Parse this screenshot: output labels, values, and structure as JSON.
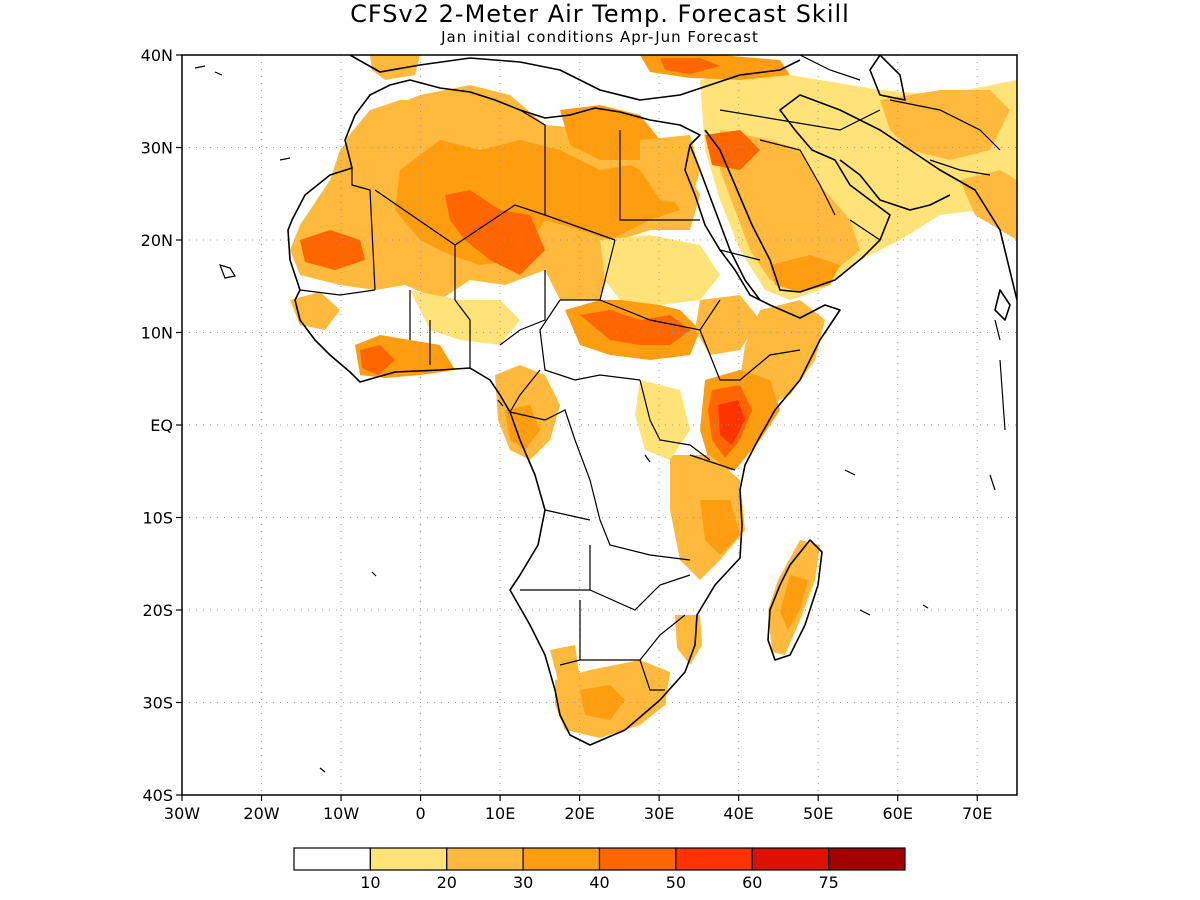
{
  "title": "CFSv2 2-Meter Air Temp. Forecast Skill",
  "subtitle": "Jan initial conditions  Apr-Jun Forecast",
  "map": {
    "lon_range": [
      -30,
      75
    ],
    "lat_range": [
      -40,
      40
    ],
    "lat_ticks": [
      {
        "lat": 40,
        "label": "40N"
      },
      {
        "lat": 30,
        "label": "30N"
      },
      {
        "lat": 20,
        "label": "20N"
      },
      {
        "lat": 10,
        "label": "10N"
      },
      {
        "lat": 0,
        "label": "EQ"
      },
      {
        "lat": -10,
        "label": "10S"
      },
      {
        "lat": -20,
        "label": "20S"
      },
      {
        "lat": -30,
        "label": "30S"
      },
      {
        "lat": -40,
        "label": "40S"
      }
    ],
    "lon_ticks": [
      {
        "lon": -30,
        "label": "30W"
      },
      {
        "lon": -20,
        "label": "20W"
      },
      {
        "lon": -10,
        "label": "10W"
      },
      {
        "lon": 0,
        "label": "0"
      },
      {
        "lon": 10,
        "label": "10E"
      },
      {
        "lon": 20,
        "label": "20E"
      },
      {
        "lon": 30,
        "label": "30E"
      },
      {
        "lon": 40,
        "label": "40E"
      },
      {
        "lon": 50,
        "label": "50E"
      },
      {
        "lon": 60,
        "label": "60E"
      },
      {
        "lon": 70,
        "label": "70E"
      }
    ],
    "grid": true
  },
  "legend": {
    "colors": [
      "#ffffff",
      "#ffe378",
      "#ffb93c",
      "#ff9d10",
      "#ff6600",
      "#ff3300",
      "#dd1100",
      "#a30000"
    ],
    "labels": [
      "10",
      "20",
      "30",
      "40",
      "50",
      "60",
      "75"
    ]
  },
  "colors": {
    "c10": "#ffe378",
    "c20": "#ffb93c",
    "c30": "#ff9d10",
    "c40": "#ff6600",
    "c50": "#ff3300"
  }
}
